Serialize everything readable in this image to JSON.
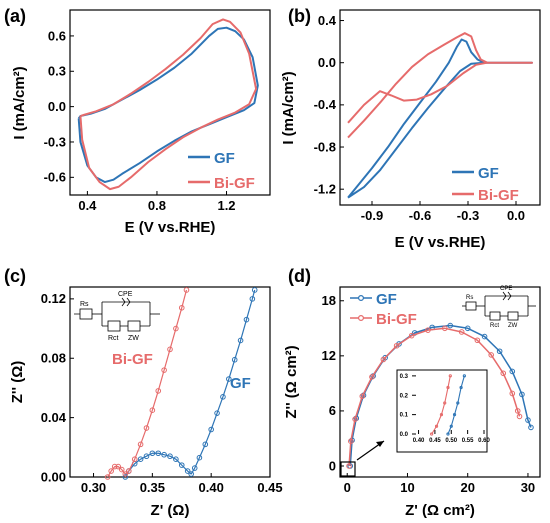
{
  "figure": {
    "panels": [
      {
        "label": "(a)",
        "xlabel": "E (V vs.RHE)",
        "ylabel": "I (mA/cm²)",
        "legend": [
          {
            "text": "GF",
            "color": "#2e75b6"
          },
          {
            "text": "Bi-GF",
            "color": "#e66b6b"
          }
        ]
      },
      {
        "label": "(b)",
        "xlabel": "E (V vs.RHE)",
        "ylabel": "I (mA/cm²)",
        "legend": [
          {
            "text": "GF",
            "color": "#2e75b6"
          },
          {
            "text": "Bi-GF",
            "color": "#e66b6b"
          }
        ]
      },
      {
        "label": "(c)",
        "xlabel": "Z' (Ω)",
        "ylabel": "Z'' (Ω)",
        "annotations": [
          {
            "text": "Bi-GF",
            "color": "#e66b6b"
          },
          {
            "text": "GF",
            "color": "#2e75b6"
          }
        ],
        "circuit": {
          "rs": "Rs",
          "cpe": "CPE",
          "rct": "Rct",
          "zw": "ZW"
        }
      },
      {
        "label": "(d)",
        "xlabel": "Z' (Ω cm²)",
        "ylabel": "Z'' (Ω cm²)",
        "legend": [
          {
            "text": "GF",
            "color": "#2e75b6"
          },
          {
            "text": "Bi-GF",
            "color": "#e66b6b"
          }
        ],
        "circuit": {
          "rs": "Rs",
          "cpe": "CPE",
          "rct": "Rct",
          "zw": "ZW"
        },
        "inset": {
          "xticks": [
            "0.40",
            "0.45",
            "0.50",
            "0.55",
            "0.60"
          ],
          "yticks": [
            "0.0",
            "0.1",
            "0.2",
            "0.3"
          ]
        }
      }
    ]
  },
  "chart_data": [
    {
      "type": "line",
      "panel": "(a)",
      "xticks": [
        "0.4",
        "0.8",
        "1.2"
      ],
      "yticks": [
        "-0.6",
        "-0.3",
        "0.0",
        "0.3",
        "0.6"
      ],
      "xlim": [
        0.3,
        1.45
      ],
      "ylim": [
        -0.75,
        0.82
      ],
      "series": [
        {
          "name": "GF",
          "color": "#2e75b6",
          "points": [
            [
              0.35,
              -0.1
            ],
            [
              0.36,
              -0.3
            ],
            [
              0.4,
              -0.5
            ],
            [
              0.45,
              -0.6
            ],
            [
              0.5,
              -0.64
            ],
            [
              0.55,
              -0.62
            ],
            [
              0.6,
              -0.57
            ],
            [
              0.7,
              -0.48
            ],
            [
              0.8,
              -0.38
            ],
            [
              0.9,
              -0.29
            ],
            [
              1.0,
              -0.21
            ],
            [
              1.1,
              -0.15
            ],
            [
              1.2,
              -0.09
            ],
            [
              1.3,
              -0.03
            ],
            [
              1.36,
              0.03
            ],
            [
              1.38,
              0.18
            ],
            [
              1.35,
              0.42
            ],
            [
              1.3,
              0.57
            ],
            [
              1.25,
              0.64
            ],
            [
              1.2,
              0.67
            ],
            [
              1.15,
              0.66
            ],
            [
              1.1,
              0.6
            ],
            [
              1.0,
              0.45
            ],
            [
              0.9,
              0.33
            ],
            [
              0.8,
              0.23
            ],
            [
              0.7,
              0.14
            ],
            [
              0.6,
              0.06
            ],
            [
              0.5,
              -0.02
            ],
            [
              0.42,
              -0.06
            ],
            [
              0.36,
              -0.08
            ],
            [
              0.35,
              -0.1
            ]
          ]
        },
        {
          "name": "Bi-GF",
          "color": "#e66b6b",
          "points": [
            [
              0.36,
              -0.08
            ],
            [
              0.37,
              -0.28
            ],
            [
              0.41,
              -0.52
            ],
            [
              0.47,
              -0.64
            ],
            [
              0.53,
              -0.7
            ],
            [
              0.58,
              -0.68
            ],
            [
              0.65,
              -0.6
            ],
            [
              0.75,
              -0.47
            ],
            [
              0.85,
              -0.36
            ],
            [
              0.95,
              -0.26
            ],
            [
              1.05,
              -0.18
            ],
            [
              1.15,
              -0.11
            ],
            [
              1.25,
              -0.05
            ],
            [
              1.33,
              0.02
            ],
            [
              1.37,
              0.15
            ],
            [
              1.33,
              0.45
            ],
            [
              1.28,
              0.63
            ],
            [
              1.22,
              0.72
            ],
            [
              1.18,
              0.74
            ],
            [
              1.12,
              0.7
            ],
            [
              1.05,
              0.58
            ],
            [
              0.95,
              0.44
            ],
            [
              0.85,
              0.32
            ],
            [
              0.75,
              0.21
            ],
            [
              0.65,
              0.11
            ],
            [
              0.55,
              0.02
            ],
            [
              0.45,
              -0.04
            ],
            [
              0.38,
              -0.07
            ],
            [
              0.36,
              -0.08
            ]
          ]
        }
      ]
    },
    {
      "type": "line",
      "panel": "(b)",
      "xticks": [
        "-0.9",
        "-0.6",
        "-0.3",
        "0.0"
      ],
      "yticks": [
        "-1.2",
        "-0.8",
        "-0.4",
        "0.0",
        "0.4"
      ],
      "xlim": [
        -1.1,
        0.15
      ],
      "ylim": [
        -1.35,
        0.5
      ],
      "series": [
        {
          "name": "GF",
          "color": "#2e75b6",
          "points": [
            [
              -1.05,
              -1.28
            ],
            [
              -0.9,
              -1.0
            ],
            [
              -0.8,
              -0.8
            ],
            [
              -0.7,
              -0.58
            ],
            [
              -0.6,
              -0.38
            ],
            [
              -0.5,
              -0.18
            ],
            [
              -0.42,
              0.0
            ],
            [
              -0.37,
              0.15
            ],
            [
              -0.34,
              0.22
            ],
            [
              -0.31,
              0.2
            ],
            [
              -0.28,
              0.1
            ],
            [
              -0.24,
              0.03
            ],
            [
              -0.2,
              0.0
            ],
            [
              0.0,
              0.0
            ],
            [
              0.1,
              0.0
            ],
            [
              -0.2,
              0.0
            ],
            [
              -0.28,
              -0.01
            ],
            [
              -0.35,
              -0.08
            ],
            [
              -0.45,
              -0.25
            ],
            [
              -0.55,
              -0.43
            ],
            [
              -0.65,
              -0.62
            ],
            [
              -0.75,
              -0.82
            ],
            [
              -0.85,
              -1.02
            ],
            [
              -0.95,
              -1.18
            ],
            [
              -1.05,
              -1.28
            ]
          ]
        },
        {
          "name": "Bi-GF",
          "color": "#e66b6b",
          "points": [
            [
              -1.05,
              -0.71
            ],
            [
              -0.95,
              -0.55
            ],
            [
              -0.85,
              -0.38
            ],
            [
              -0.75,
              -0.2
            ],
            [
              -0.65,
              -0.04
            ],
            [
              -0.55,
              0.08
            ],
            [
              -0.45,
              0.17
            ],
            [
              -0.37,
              0.24
            ],
            [
              -0.32,
              0.28
            ],
            [
              -0.28,
              0.25
            ],
            [
              -0.25,
              0.12
            ],
            [
              -0.22,
              0.03
            ],
            [
              -0.18,
              0.0
            ],
            [
              0.1,
              0.0
            ],
            [
              -0.18,
              0.0
            ],
            [
              -0.25,
              -0.02
            ],
            [
              -0.33,
              -0.1
            ],
            [
              -0.43,
              -0.22
            ],
            [
              -0.53,
              -0.3
            ],
            [
              -0.62,
              -0.35
            ],
            [
              -0.7,
              -0.36
            ],
            [
              -0.78,
              -0.31
            ],
            [
              -0.85,
              -0.27
            ],
            [
              -0.95,
              -0.4
            ],
            [
              -1.05,
              -0.57
            ]
          ]
        }
      ]
    },
    {
      "type": "scatter",
      "panel": "(c)",
      "xticks": [
        "0.30",
        "0.35",
        "0.40",
        "0.45"
      ],
      "yticks": [
        "0.00",
        "0.04",
        "0.08",
        "0.12"
      ],
      "xlim": [
        0.28,
        0.45
      ],
      "ylim": [
        0.0,
        0.128
      ],
      "series": [
        {
          "name": "GF",
          "color": "#2e75b6",
          "points": [
            [
              0.327,
              0.0
            ],
            [
              0.33,
              0.004
            ],
            [
              0.335,
              0.009
            ],
            [
              0.34,
              0.012
            ],
            [
              0.345,
              0.014
            ],
            [
              0.35,
              0.016
            ],
            [
              0.355,
              0.016
            ],
            [
              0.36,
              0.015
            ],
            [
              0.365,
              0.014
            ],
            [
              0.37,
              0.012
            ],
            [
              0.375,
              0.008
            ],
            [
              0.38,
              0.004
            ],
            [
              0.383,
              0.002
            ],
            [
              0.386,
              0.006
            ],
            [
              0.39,
              0.013
            ],
            [
              0.395,
              0.022
            ],
            [
              0.4,
              0.032
            ],
            [
              0.405,
              0.043
            ],
            [
              0.41,
              0.054
            ],
            [
              0.415,
              0.066
            ],
            [
              0.42,
              0.079
            ],
            [
              0.425,
              0.092
            ],
            [
              0.43,
              0.106
            ],
            [
              0.435,
              0.12
            ],
            [
              0.437,
              0.126
            ]
          ]
        },
        {
          "name": "Bi-GF",
          "color": "#e66b6b",
          "points": [
            [
              0.312,
              0.0
            ],
            [
              0.315,
              0.004
            ],
            [
              0.318,
              0.007
            ],
            [
              0.321,
              0.007
            ],
            [
              0.324,
              0.005
            ],
            [
              0.327,
              0.002
            ],
            [
              0.33,
              0.004
            ],
            [
              0.335,
              0.012
            ],
            [
              0.34,
              0.022
            ],
            [
              0.345,
              0.033
            ],
            [
              0.35,
              0.045
            ],
            [
              0.355,
              0.058
            ],
            [
              0.36,
              0.072
            ],
            [
              0.365,
              0.086
            ],
            [
              0.37,
              0.1
            ],
            [
              0.375,
              0.114
            ],
            [
              0.379,
              0.126
            ]
          ]
        }
      ]
    },
    {
      "type": "line",
      "panel": "(d)",
      "xticks": [
        "0",
        "10",
        "20",
        "30"
      ],
      "yticks": [
        "0",
        "6",
        "12",
        "18"
      ],
      "xlim": [
        -1.2,
        32
      ],
      "ylim": [
        -1.2,
        19.5
      ],
      "series": [
        {
          "name": "GF",
          "color": "#2e75b6",
          "points": [
            [
              0.5,
              0.0
            ],
            [
              0.8,
              2.8
            ],
            [
              1.5,
              5.2
            ],
            [
              2.7,
              7.7
            ],
            [
              4.3,
              9.8
            ],
            [
              6.3,
              11.8
            ],
            [
              8.6,
              13.3
            ],
            [
              11.2,
              14.5
            ],
            [
              14.1,
              15.1
            ],
            [
              17.1,
              15.3
            ],
            [
              20.0,
              15.0
            ],
            [
              22.8,
              14.1
            ],
            [
              25.3,
              12.5
            ],
            [
              27.4,
              10.3
            ],
            [
              29.0,
              7.8
            ],
            [
              30.0,
              5.0
            ],
            [
              30.5,
              4.2
            ]
          ]
        },
        {
          "name": "Bi-GF",
          "color": "#e66b6b",
          "points": [
            [
              0.3,
              0.0
            ],
            [
              0.6,
              2.7
            ],
            [
              1.3,
              5.1
            ],
            [
              2.5,
              7.6
            ],
            [
              4.1,
              9.7
            ],
            [
              6.0,
              11.6
            ],
            [
              8.2,
              13.1
            ],
            [
              10.7,
              14.2
            ],
            [
              13.4,
              14.8
            ],
            [
              16.2,
              15.0
            ],
            [
              19.0,
              14.6
            ],
            [
              21.6,
              13.7
            ],
            [
              23.9,
              12.1
            ],
            [
              25.9,
              10.1
            ],
            [
              27.4,
              7.9
            ],
            [
              28.3,
              6.0
            ],
            [
              28.6,
              5.4
            ]
          ]
        }
      ],
      "inset": {
        "xlim": [
          0.38,
          0.6
        ],
        "ylim": [
          0.0,
          0.32
        ],
        "series": [
          {
            "name": "GF",
            "color": "#2e75b6",
            "points": [
              [
                0.49,
                0.0
              ],
              [
                0.5,
                0.04
              ],
              [
                0.51,
                0.1
              ],
              [
                0.52,
                0.16
              ],
              [
                0.53,
                0.24
              ],
              [
                0.54,
                0.3
              ]
            ]
          },
          {
            "name": "Bi-GF",
            "color": "#e66b6b",
            "points": [
              [
                0.44,
                0.0
              ],
              [
                0.455,
                0.04
              ],
              [
                0.47,
                0.1
              ],
              [
                0.48,
                0.16
              ],
              [
                0.49,
                0.24
              ],
              [
                0.497,
                0.3
              ]
            ]
          }
        ]
      }
    }
  ]
}
